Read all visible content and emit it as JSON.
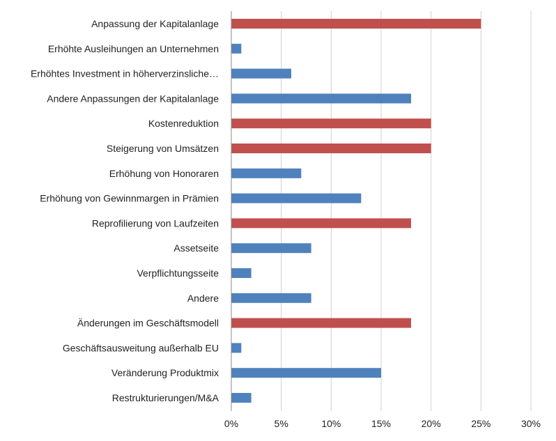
{
  "chart_data": {
    "type": "bar",
    "orientation": "horizontal",
    "title": "",
    "xlabel": "",
    "ylabel": "",
    "xlim": [
      0,
      30
    ],
    "x_ticks": [
      0,
      5,
      10,
      15,
      20,
      25,
      30
    ],
    "x_tick_labels": [
      "0%",
      "5%",
      "10%",
      "15%",
      "20%",
      "25%",
      "30%"
    ],
    "grid": "vertical",
    "legend": "none",
    "colors": {
      "main": "#c0504d",
      "sub": "#4f81bd"
    },
    "categories": [
      "Anpassung der Kapitalanlage",
      "Erhöhte Ausleihungen an Unternehmen",
      "Erhöhtes Investment in höherverzinsliche…",
      "Andere Anpassungen der Kapitalanlage",
      "Kostenreduktion",
      "Steigerung von Umsätzen",
      "Erhöhung von Honoraren",
      "Erhöhung von Gewinnmargen in Prämien",
      "Reprofilierung von Laufzeiten",
      "Assetseite",
      "Verpflichtungsseite",
      "Andere",
      "Änderungen im Geschäftsmodell",
      "Geschäftsausweitung außerhalb EU",
      "Veränderung Produktmix",
      "Restrukturierungen/M&A"
    ],
    "values": [
      25,
      1,
      6,
      18,
      20,
      20,
      7,
      13,
      18,
      8,
      2,
      8,
      18,
      1,
      15,
      2
    ],
    "bar_types": [
      "main",
      "sub",
      "sub",
      "sub",
      "main",
      "main",
      "sub",
      "sub",
      "main",
      "sub",
      "sub",
      "sub",
      "main",
      "sub",
      "sub",
      "sub"
    ]
  }
}
